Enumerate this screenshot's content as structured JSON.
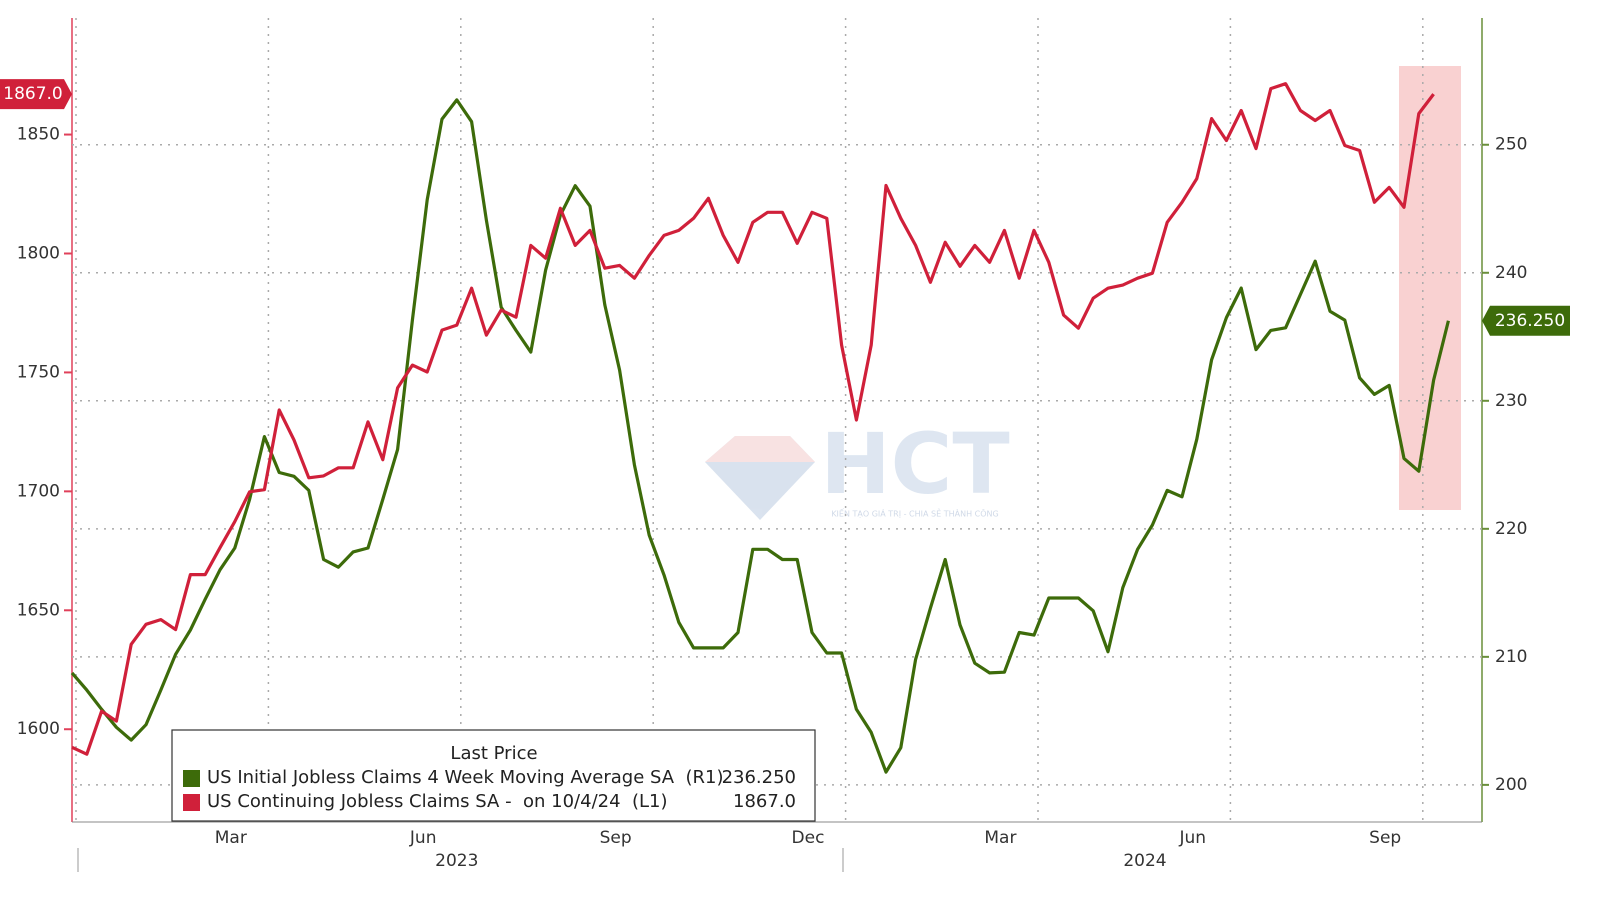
{
  "chart_data": {
    "type": "line",
    "categories": [
      null,
      null,
      null,
      null,
      null,
      null,
      null,
      null,
      null,
      null,
      null,
      "Mar",
      null,
      null,
      null,
      null,
      null,
      null,
      null,
      null,
      null,
      null,
      null,
      null,
      "Jun",
      null,
      null,
      null,
      null,
      null,
      null,
      null,
      null,
      null,
      null,
      null,
      null,
      "Sep",
      null,
      null,
      null,
      null,
      null,
      null,
      null,
      null,
      null,
      null,
      null,
      null,
      "Dec",
      null,
      null,
      null,
      null,
      null,
      null,
      null,
      null,
      null,
      null,
      null,
      null,
      "Mar",
      null,
      null,
      null,
      null,
      null,
      null,
      null,
      null,
      null,
      null,
      null,
      null,
      "Jun",
      null,
      null,
      null,
      null,
      null,
      null,
      null,
      null,
      null,
      null,
      null,
      null,
      "Sep",
      null,
      null,
      null,
      null
    ],
    "year_labels": [
      "2023",
      "2024"
    ],
    "legend_title": "Last Price",
    "series": [
      {
        "name": "US Initial Jobless Claims 4 Week Moving Average SA  (R1)",
        "color": "#3d6b0a",
        "axis": "y2",
        "last_label": "236.250",
        "values": [
          208.75,
          207.4,
          205.9,
          204.5,
          203.5,
          204.7,
          207.4,
          210.2,
          212.1,
          214.5,
          216.8,
          218.5,
          222.3,
          227.2,
          224.4,
          224.1,
          223.0,
          217.6,
          217.0,
          218.2,
          218.5,
          222.3,
          226.2,
          236.3,
          245.7,
          252.0,
          253.5,
          251.8,
          244.1,
          237.3,
          235.5,
          233.8,
          240.2,
          244.5,
          246.8,
          245.2,
          237.5,
          232.4,
          225.0,
          219.5,
          216.4,
          212.7,
          210.7,
          210.7,
          210.7,
          211.9,
          218.4,
          218.4,
          217.6,
          217.6,
          211.9,
          210.3,
          210.3,
          205.9,
          204.1,
          201.0,
          202.9,
          209.8,
          213.8,
          217.6,
          212.5,
          209.5,
          208.75,
          208.8,
          211.9,
          211.7,
          214.6,
          214.6,
          214.6,
          213.6,
          210.4,
          215.4,
          218.4,
          220.3,
          223.0,
          222.5,
          227.0,
          233.2,
          236.5,
          238.8,
          234.0,
          235.5,
          235.7,
          238.3,
          240.9,
          237.0,
          236.3,
          231.8,
          230.5,
          231.2,
          225.5,
          224.5,
          231.6,
          236.25
        ]
      },
      {
        "name": "US Continuing Jobless Claims SA -  on 10/4/24  (L1)",
        "color": "#d0203a",
        "axis": "y",
        "last_label": "1867.0",
        "values": [
          1592.4,
          1589.5,
          1607.6,
          1603.4,
          1635.7,
          1644.1,
          1646.1,
          1641.9,
          1665,
          1665,
          1676.3,
          1687.3,
          1699.8,
          1700.7,
          1734.2,
          1721.6,
          1705.7,
          1706.5,
          1709.9,
          1709.9,
          1729.2,
          1713.3,
          1743.5,
          1753.1,
          1750.2,
          1767.8,
          1769.9,
          1785.4,
          1765.7,
          1776.2,
          1773.2,
          1803.4,
          1798,
          1819,
          1803.4,
          1809.7,
          1793.8,
          1795,
          1789.6,
          1799.2,
          1807.6,
          1809.7,
          1814.8,
          1823.2,
          1807.6,
          1796.3,
          1813.1,
          1817.3,
          1817.3,
          1804.3,
          1817.3,
          1814.8,
          1761.5,
          1730,
          1761.5,
          1828.6,
          1814.8,
          1803.4,
          1787.9,
          1804.7,
          1794.6,
          1803.4,
          1796.3,
          1809.7,
          1789.6,
          1809.7,
          1796.3,
          1774.1,
          1768.6,
          1781.2,
          1785.4,
          1786.7,
          1789.6,
          1791.7,
          1813.1,
          1821.5,
          1831.5,
          1856.7,
          1847.5,
          1860.1,
          1844.1,
          1869.3,
          1871.4,
          1860.1,
          1855.9,
          1860.1,
          1845.4,
          1843.3,
          1821.5,
          1827.8,
          1819.4,
          1858.8,
          1867,
          null
        ]
      }
    ],
    "ylim": [
      1561,
      1899
    ],
    "yticks": [
      1600,
      1650,
      1700,
      1750,
      1800,
      1850
    ],
    "y2lim": [
      197.1,
      259.9
    ],
    "y2ticks": [
      200,
      210,
      220,
      230,
      240,
      250
    ],
    "grid": true,
    "watermark": {
      "text": "HCT",
      "tagline": "KIẾN TẠO GIÁ TRỊ - CHIA SẺ THÀNH CÔNG"
    }
  }
}
